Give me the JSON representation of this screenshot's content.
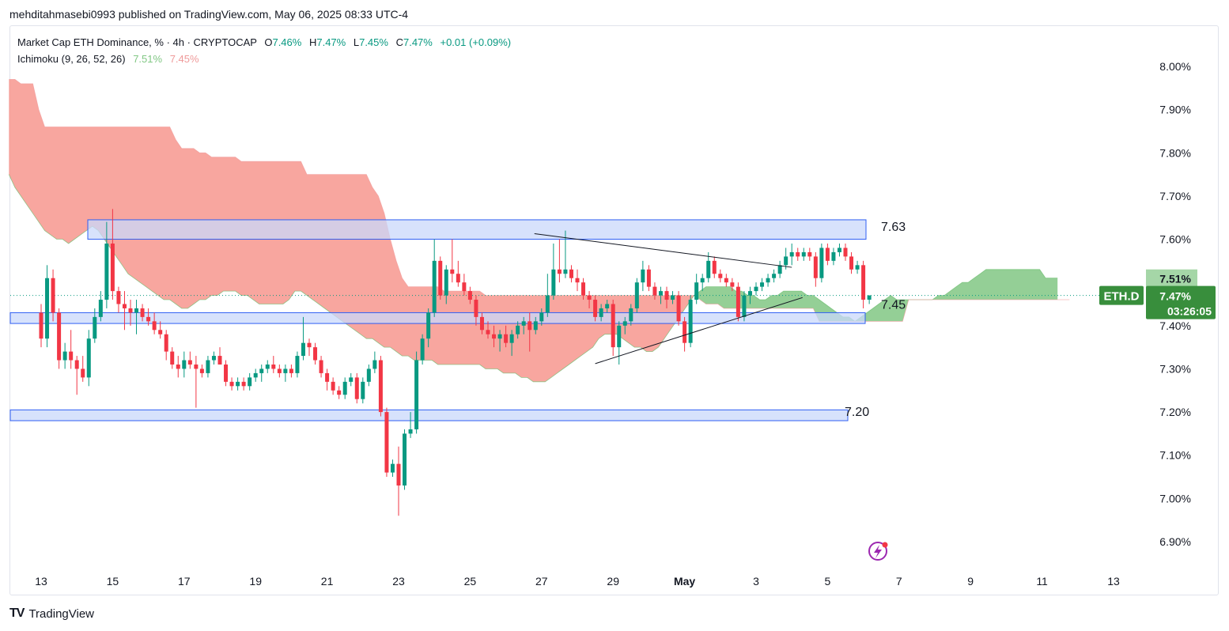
{
  "header": {
    "publish_text": "mehditahmasebi0993 published on TradingView.com, May 06, 2025 08:33 UTC-4"
  },
  "legend": {
    "symbol_text": "Market Cap ETH Dominance, % · 4h · CRYPTOCAP",
    "o_label": "O",
    "o_value": "7.46%",
    "h_label": "H",
    "h_value": "7.47%",
    "l_label": "L",
    "l_value": "7.45%",
    "c_label": "C",
    "c_value": "7.47%",
    "change": "+0.01 (+0.09%)",
    "indicator_name": "Ichimoku (9, 26, 52, 26)",
    "indicator_v1": "7.51%",
    "indicator_v2": "7.45%"
  },
  "footer": {
    "brand_text": "TradingView",
    "logo_text": "TV"
  },
  "colors": {
    "up": "#089981",
    "down": "#f23645",
    "cloud_bull": "#81c784",
    "cloud_bear": "#f7978e",
    "zone_fill": "#c9d8fb",
    "zone_border": "#2f5ff3",
    "label_green": "#388e3c",
    "label_green_light": "#a5d6a7",
    "label_red_light": "#f28b82"
  },
  "chart_data": {
    "type": "candlestick",
    "symbol": "ETH.D",
    "timeframe": "4h",
    "ylim": [
      6.86,
      8.04
    ],
    "y_ticks": [
      "8.00%",
      "7.90%",
      "7.80%",
      "7.70%",
      "7.60%",
      "7.50%",
      "7.40%",
      "7.30%",
      "7.20%",
      "7.10%",
      "7.00%",
      "6.90%"
    ],
    "x_ticks": [
      "13",
      "15",
      "17",
      "19",
      "21",
      "23",
      "25",
      "27",
      "29",
      "May",
      "3",
      "5",
      "7",
      "9",
      "11",
      "13"
    ],
    "price_labels": {
      "symbol_tag": "ETH.D",
      "last": "7.47%",
      "countdown": "03:26:05",
      "span_a": "7.51%",
      "span_b": "7.45%"
    },
    "zones": [
      {
        "top": 7.645,
        "bottom": 7.6,
        "label": "7.63"
      },
      {
        "top": 7.43,
        "bottom": 7.405,
        "label": "7.45"
      },
      {
        "top": 7.205,
        "bottom": 7.18,
        "label": "7.20"
      }
    ],
    "trendlines": [
      {
        "x1": 26.8,
        "y1": 7.613,
        "x2": 34.0,
        "y2": 7.535
      },
      {
        "x1": 28.5,
        "y1": 7.312,
        "x2": 34.3,
        "y2": 7.465
      }
    ],
    "candles": [
      [
        7.43,
        7.45,
        7.35,
        7.37
      ],
      [
        7.37,
        7.54,
        7.35,
        7.51
      ],
      [
        7.51,
        7.53,
        7.41,
        7.43
      ],
      [
        7.43,
        7.44,
        7.3,
        7.32
      ],
      [
        7.32,
        7.36,
        7.3,
        7.34
      ],
      [
        7.34,
        7.39,
        7.3,
        7.32
      ],
      [
        7.32,
        7.33,
        7.24,
        7.3
      ],
      [
        7.3,
        7.33,
        7.27,
        7.28
      ],
      [
        7.28,
        7.39,
        7.26,
        7.37
      ],
      [
        7.37,
        7.44,
        7.36,
        7.42
      ],
      [
        7.42,
        7.48,
        7.41,
        7.46
      ],
      [
        7.46,
        7.64,
        7.44,
        7.59
      ],
      [
        7.59,
        7.67,
        7.46,
        7.48
      ],
      [
        7.48,
        7.49,
        7.43,
        7.45
      ],
      [
        7.45,
        7.48,
        7.39,
        7.44
      ],
      [
        7.44,
        7.46,
        7.4,
        7.43
      ],
      [
        7.43,
        7.46,
        7.38,
        7.44
      ],
      [
        7.44,
        7.45,
        7.41,
        7.42
      ],
      [
        7.42,
        7.44,
        7.4,
        7.41
      ],
      [
        7.41,
        7.43,
        7.38,
        7.39
      ],
      [
        7.39,
        7.41,
        7.37,
        7.38
      ],
      [
        7.38,
        7.39,
        7.32,
        7.34
      ],
      [
        7.34,
        7.35,
        7.3,
        7.31
      ],
      [
        7.31,
        7.33,
        7.28,
        7.3
      ],
      [
        7.3,
        7.34,
        7.28,
        7.32
      ],
      [
        7.32,
        7.34,
        7.3,
        7.31
      ],
      [
        7.31,
        7.33,
        7.21,
        7.3
      ],
      [
        7.3,
        7.31,
        7.28,
        7.29
      ],
      [
        7.29,
        7.33,
        7.28,
        7.32
      ],
      [
        7.32,
        7.34,
        7.31,
        7.33
      ],
      [
        7.33,
        7.35,
        7.31,
        7.31
      ],
      [
        7.31,
        7.32,
        7.26,
        7.27
      ],
      [
        7.27,
        7.28,
        7.25,
        7.26
      ],
      [
        7.26,
        7.28,
        7.25,
        7.27
      ],
      [
        7.27,
        7.28,
        7.25,
        7.26
      ],
      [
        7.26,
        7.29,
        7.25,
        7.28
      ],
      [
        7.28,
        7.3,
        7.27,
        7.29
      ],
      [
        7.29,
        7.31,
        7.27,
        7.3
      ],
      [
        7.3,
        7.32,
        7.29,
        7.31
      ],
      [
        7.31,
        7.33,
        7.29,
        7.3
      ],
      [
        7.3,
        7.31,
        7.28,
        7.29
      ],
      [
        7.29,
        7.31,
        7.27,
        7.3
      ],
      [
        7.3,
        7.31,
        7.28,
        7.29
      ],
      [
        7.29,
        7.34,
        7.28,
        7.33
      ],
      [
        7.33,
        7.42,
        7.32,
        7.36
      ],
      [
        7.36,
        7.37,
        7.33,
        7.35
      ],
      [
        7.35,
        7.36,
        7.31,
        7.32
      ],
      [
        7.32,
        7.33,
        7.28,
        7.29
      ],
      [
        7.29,
        7.3,
        7.25,
        7.27
      ],
      [
        7.27,
        7.28,
        7.24,
        7.25
      ],
      [
        7.25,
        7.26,
        7.23,
        7.24
      ],
      [
        7.24,
        7.28,
        7.23,
        7.27
      ],
      [
        7.27,
        7.29,
        7.26,
        7.28
      ],
      [
        7.28,
        7.29,
        7.22,
        7.23
      ],
      [
        7.23,
        7.28,
        7.22,
        7.27
      ],
      [
        7.27,
        7.31,
        7.26,
        7.3
      ],
      [
        7.3,
        7.34,
        7.29,
        7.32
      ],
      [
        7.32,
        7.33,
        7.19,
        7.2
      ],
      [
        7.2,
        7.21,
        7.05,
        7.06
      ],
      [
        7.06,
        7.09,
        7.05,
        7.08
      ],
      [
        7.08,
        7.12,
        6.96,
        7.03
      ],
      [
        7.03,
        7.16,
        7.02,
        7.15
      ],
      [
        7.15,
        7.2,
        7.14,
        7.16
      ],
      [
        7.16,
        7.34,
        7.15,
        7.32
      ],
      [
        7.32,
        7.38,
        7.31,
        7.37
      ],
      [
        7.37,
        7.44,
        7.35,
        7.43
      ],
      [
        7.43,
        7.6,
        7.42,
        7.55
      ],
      [
        7.55,
        7.56,
        7.46,
        7.47
      ],
      [
        7.47,
        7.54,
        7.45,
        7.53
      ],
      [
        7.53,
        7.6,
        7.5,
        7.52
      ],
      [
        7.52,
        7.55,
        7.49,
        7.5
      ],
      [
        7.5,
        7.52,
        7.47,
        7.48
      ],
      [
        7.48,
        7.49,
        7.45,
        7.46
      ],
      [
        7.46,
        7.47,
        7.4,
        7.42
      ],
      [
        7.42,
        7.43,
        7.38,
        7.39
      ],
      [
        7.39,
        7.41,
        7.37,
        7.38
      ],
      [
        7.38,
        7.4,
        7.35,
        7.37
      ],
      [
        7.37,
        7.39,
        7.34,
        7.38
      ],
      [
        7.38,
        7.4,
        7.35,
        7.36
      ],
      [
        7.36,
        7.39,
        7.33,
        7.38
      ],
      [
        7.38,
        7.41,
        7.37,
        7.4
      ],
      [
        7.4,
        7.42,
        7.38,
        7.41
      ],
      [
        7.41,
        7.43,
        7.34,
        7.39
      ],
      [
        7.39,
        7.42,
        7.38,
        7.41
      ],
      [
        7.41,
        7.44,
        7.4,
        7.43
      ],
      [
        7.43,
        7.52,
        7.42,
        7.47
      ],
      [
        7.47,
        7.59,
        7.46,
        7.53
      ],
      [
        7.53,
        7.6,
        7.5,
        7.52
      ],
      [
        7.52,
        7.62,
        7.51,
        7.53
      ],
      [
        7.53,
        7.54,
        7.5,
        7.51
      ],
      [
        7.51,
        7.53,
        7.48,
        7.5
      ],
      [
        7.5,
        7.51,
        7.46,
        7.47
      ],
      [
        7.47,
        7.48,
        7.44,
        7.46
      ],
      [
        7.46,
        7.47,
        7.41,
        7.42
      ],
      [
        7.42,
        7.45,
        7.41,
        7.44
      ],
      [
        7.44,
        7.46,
        7.43,
        7.45
      ],
      [
        7.45,
        7.46,
        7.33,
        7.35
      ],
      [
        7.35,
        7.41,
        7.31,
        7.4
      ],
      [
        7.4,
        7.42,
        7.38,
        7.41
      ],
      [
        7.41,
        7.45,
        7.4,
        7.44
      ],
      [
        7.44,
        7.51,
        7.43,
        7.5
      ],
      [
        7.5,
        7.55,
        7.48,
        7.53
      ],
      [
        7.53,
        7.54,
        7.48,
        7.49
      ],
      [
        7.49,
        7.5,
        7.46,
        7.47
      ],
      [
        7.47,
        7.49,
        7.45,
        7.48
      ],
      [
        7.48,
        7.49,
        7.44,
        7.46
      ],
      [
        7.46,
        7.48,
        7.45,
        7.47
      ],
      [
        7.47,
        7.48,
        7.4,
        7.41
      ],
      [
        7.41,
        7.42,
        7.34,
        7.36
      ],
      [
        7.36,
        7.47,
        7.35,
        7.46
      ],
      [
        7.46,
        7.52,
        7.45,
        7.5
      ],
      [
        7.5,
        7.52,
        7.48,
        7.51
      ],
      [
        7.51,
        7.57,
        7.5,
        7.55
      ],
      [
        7.55,
        7.56,
        7.51,
        7.52
      ],
      [
        7.52,
        7.53,
        7.5,
        7.51
      ],
      [
        7.51,
        7.52,
        7.49,
        7.5
      ],
      [
        7.5,
        7.51,
        7.48,
        7.49
      ],
      [
        7.49,
        7.5,
        7.41,
        7.42
      ],
      [
        7.42,
        7.48,
        7.41,
        7.47
      ],
      [
        7.47,
        7.49,
        7.45,
        7.48
      ],
      [
        7.48,
        7.5,
        7.47,
        7.49
      ],
      [
        7.49,
        7.51,
        7.48,
        7.5
      ],
      [
        7.5,
        7.52,
        7.49,
        7.51
      ],
      [
        7.51,
        7.53,
        7.5,
        7.52
      ],
      [
        7.52,
        7.55,
        7.51,
        7.54
      ],
      [
        7.54,
        7.58,
        7.53,
        7.56
      ],
      [
        7.56,
        7.59,
        7.54,
        7.57
      ],
      [
        7.57,
        7.58,
        7.55,
        7.56
      ],
      [
        7.56,
        7.58,
        7.55,
        7.57
      ],
      [
        7.57,
        7.58,
        7.55,
        7.56
      ],
      [
        7.56,
        7.57,
        7.49,
        7.51
      ],
      [
        7.51,
        7.59,
        7.5,
        7.58
      ],
      [
        7.58,
        7.59,
        7.54,
        7.55
      ],
      [
        7.55,
        7.58,
        7.54,
        7.57
      ],
      [
        7.57,
        7.59,
        7.56,
        7.58
      ],
      [
        7.58,
        7.59,
        7.55,
        7.56
      ],
      [
        7.56,
        7.57,
        7.52,
        7.53
      ],
      [
        7.53,
        7.55,
        7.52,
        7.54
      ],
      [
        7.54,
        7.55,
        7.44,
        7.46
      ],
      [
        7.46,
        7.47,
        7.45,
        7.47
      ]
    ],
    "ichimoku": {
      "span_a": [
        7.75,
        7.72,
        7.7,
        7.68,
        7.66,
        7.64,
        7.62,
        7.61,
        7.6,
        7.6,
        7.59,
        7.6,
        7.61,
        7.62,
        7.63,
        7.62,
        7.6,
        7.58,
        7.56,
        7.54,
        7.52,
        7.51,
        7.5,
        7.49,
        7.48,
        7.47,
        7.46,
        7.46,
        7.45,
        7.44,
        7.44,
        7.45,
        7.46,
        7.46,
        7.47,
        7.47,
        7.48,
        7.48,
        7.48,
        7.47,
        7.47,
        7.46,
        7.45,
        7.45,
        7.45,
        7.45,
        7.45,
        7.46,
        7.48,
        7.48,
        7.47,
        7.46,
        7.45,
        7.44,
        7.43,
        7.42,
        7.41,
        7.4,
        7.39,
        7.38,
        7.37,
        7.37,
        7.36,
        7.35,
        7.35,
        7.34,
        7.33,
        7.33,
        7.32,
        7.32,
        7.32,
        7.32,
        7.31,
        7.31,
        7.31,
        7.31,
        7.31,
        7.31,
        7.31,
        7.31,
        7.3,
        7.3,
        7.3,
        7.29,
        7.29,
        7.29,
        7.28,
        7.28,
        7.27,
        7.27,
        7.27,
        7.28,
        7.29,
        7.3,
        7.31,
        7.32,
        7.33,
        7.34,
        7.35,
        7.37,
        7.38,
        7.38,
        7.38,
        7.37,
        7.36,
        7.35,
        7.35,
        7.34,
        7.34,
        7.35,
        7.37,
        7.39,
        7.41,
        7.43,
        7.45,
        7.47,
        7.48,
        7.49,
        7.49,
        7.49,
        7.49,
        7.49,
        7.48,
        7.48,
        7.47,
        7.47,
        7.46,
        7.46,
        7.47,
        7.47,
        7.48,
        7.48,
        7.48,
        7.48,
        7.47,
        7.47,
        7.46,
        7.45,
        7.44,
        7.43,
        7.42,
        7.42,
        7.41,
        7.42,
        7.43,
        7.44,
        7.45,
        7.46,
        7.47,
        7.46,
        7.46,
        7.46,
        7.46,
        7.46,
        7.46,
        7.46,
        7.47,
        7.47,
        7.48,
        7.49,
        7.5,
        7.5,
        7.51,
        7.52,
        7.53,
        7.53,
        7.53,
        7.53,
        7.53,
        7.53,
        7.53,
        7.53,
        7.53,
        7.53,
        7.51,
        7.51,
        7.51
      ],
      "span_b": [
        7.97,
        7.97,
        7.96,
        7.96,
        7.96,
        7.9,
        7.86,
        7.86,
        7.86,
        7.86,
        7.86,
        7.86,
        7.86,
        7.86,
        7.86,
        7.86,
        7.86,
        7.86,
        7.86,
        7.86,
        7.86,
        7.86,
        7.86,
        7.86,
        7.86,
        7.86,
        7.86,
        7.86,
        7.83,
        7.81,
        7.81,
        7.81,
        7.8,
        7.8,
        7.79,
        7.79,
        7.79,
        7.79,
        7.79,
        7.78,
        7.78,
        7.78,
        7.78,
        7.78,
        7.78,
        7.78,
        7.78,
        7.78,
        7.78,
        7.78,
        7.75,
        7.75,
        7.75,
        7.75,
        7.75,
        7.75,
        7.75,
        7.75,
        7.75,
        7.75,
        7.75,
        7.72,
        7.7,
        7.66,
        7.6,
        7.55,
        7.51,
        7.49,
        7.49,
        7.49,
        7.49,
        7.49,
        7.49,
        7.48,
        7.48,
        7.48,
        7.48,
        7.48,
        7.48,
        7.48,
        7.47,
        7.47,
        7.47,
        7.47,
        7.47,
        7.47,
        7.47,
        7.47,
        7.47,
        7.47,
        7.47,
        7.47,
        7.47,
        7.47,
        7.47,
        7.47,
        7.47,
        7.47,
        7.47,
        7.47,
        7.47,
        7.47,
        7.47,
        7.47,
        7.47,
        7.47,
        7.47,
        7.47,
        7.47,
        7.47,
        7.47,
        7.47,
        7.47,
        7.47,
        7.47,
        7.47,
        7.46,
        7.45,
        7.45,
        7.45,
        7.44,
        7.44,
        7.44,
        7.44,
        7.44,
        7.44,
        7.44,
        7.44,
        7.44,
        7.44,
        7.44,
        7.44,
        7.44,
        7.44,
        7.44,
        7.44,
        7.41,
        7.41,
        7.41,
        7.41,
        7.41,
        7.41,
        7.41,
        7.41,
        7.41,
        7.41,
        7.41,
        7.41,
        7.41,
        7.41,
        7.41,
        7.46,
        7.46,
        7.46,
        7.46,
        7.46,
        7.46,
        7.46,
        7.46,
        7.46,
        7.46,
        7.46,
        7.46,
        7.46,
        7.46,
        7.46,
        7.46,
        7.46,
        7.46,
        7.46,
        7.46,
        7.46,
        7.46,
        7.46,
        7.46,
        7.46,
        7.46,
        7.46,
        7.46
      ]
    }
  }
}
